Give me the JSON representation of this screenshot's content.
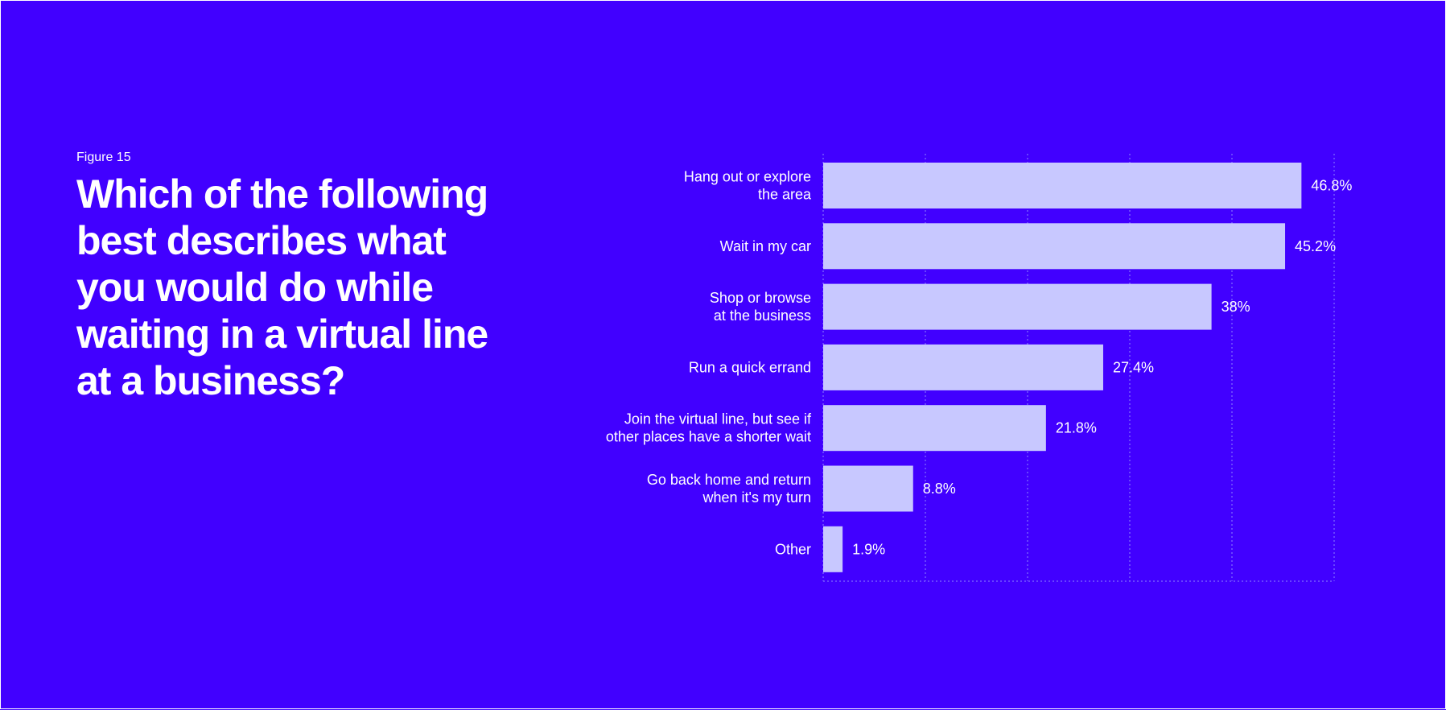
{
  "figure_label": "Figure 15",
  "question": "Which of the following best describes what you would do while waiting in a virtual line at a business?",
  "colors": {
    "background": "#4100ff",
    "bar": "#c8c8ff",
    "grid": "#8f86ff",
    "text": "#ffffff"
  },
  "chart_data": {
    "type": "bar",
    "orientation": "horizontal",
    "title": "Which of the following best describes what you would do while waiting in a virtual line at a business?",
    "xlabel": "",
    "ylabel": "",
    "xlim": [
      0,
      50
    ],
    "grid": true,
    "gridlines": [
      0,
      10,
      20,
      30,
      40,
      50
    ],
    "categories": [
      [
        "Hang out or explore",
        "the area"
      ],
      [
        "Wait in my car"
      ],
      [
        "Shop or browse",
        "at the business"
      ],
      [
        "Run a quick errand"
      ],
      [
        "Join the virtual line, but see if",
        "other places have a shorter wait"
      ],
      [
        "Go back home and return",
        "when it's my turn"
      ],
      [
        "Other"
      ]
    ],
    "values": [
      46.8,
      45.2,
      38,
      27.4,
      21.8,
      8.8,
      1.9
    ],
    "value_labels": [
      "46.8%",
      "45.2%",
      "38%",
      "27.4%",
      "21.8%",
      "8.8%",
      "1.9%"
    ]
  }
}
